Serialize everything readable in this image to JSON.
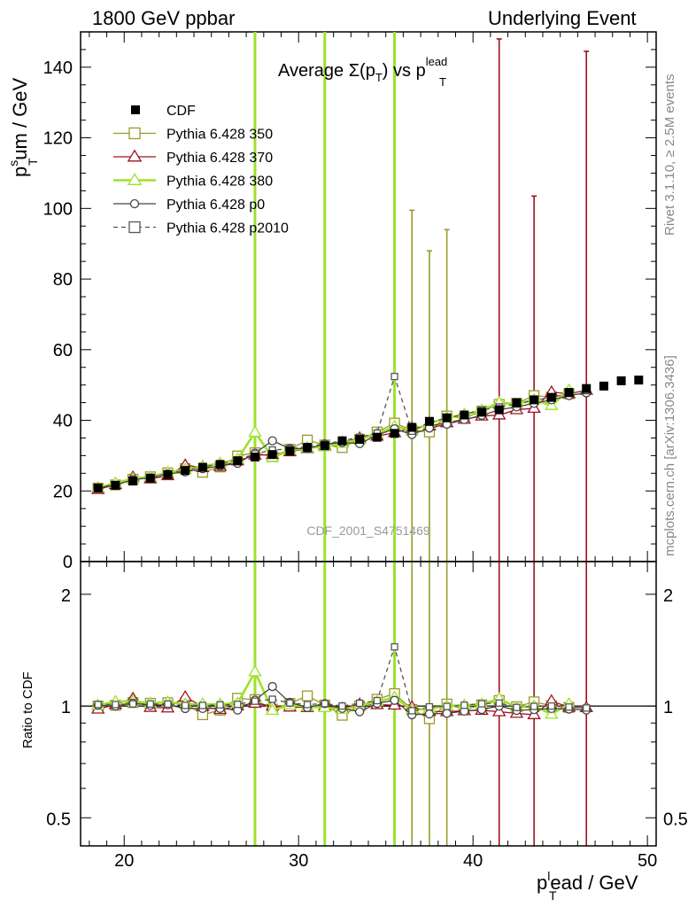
{
  "header": {
    "left": "1800 GeV ppbar",
    "right": "Underlying Event"
  },
  "side_text": {
    "rivet": "Rivet 3.1.10, ≥ 2.5M events",
    "mcplots": "mcplots.cern.ch [arXiv:1306.3436]"
  },
  "chart_data": {
    "type": "scatter",
    "title_main": "Average Σ(p",
    "title_sub": "T",
    "title_mid": ") vs p",
    "title_sup": "lead",
    "title_sub2": "T",
    "watermark": "CDF_2001_S4751469",
    "xlabel": "p",
    "xlabel_sub": "T",
    "xlabel_sup": "l",
    "xlabel_rest": "ead / GeV",
    "ylabel": "p",
    "ylabel_sub": "T",
    "ylabel_sup": "s",
    "ylabel_rest": "um / GeV",
    "ratio_ylabel": "Ratio to CDF",
    "xlim": [
      17.5,
      50.5
    ],
    "ylim": [
      0,
      150
    ],
    "ratio_ylim": [
      0.42,
      2.45
    ],
    "x_ticks": [
      "20",
      "30",
      "40",
      "50"
    ],
    "y_ticks": [
      "0",
      "20",
      "40",
      "60",
      "80",
      "100",
      "120",
      "140"
    ],
    "ratio_ticks": [
      "0.5",
      "1",
      "2"
    ],
    "legend": [
      {
        "name": "CDF",
        "color": "#000000",
        "marker": "square-filled",
        "dash": false
      },
      {
        "name": "Pythia 6.428 350",
        "color": "#9a9a28",
        "marker": "square-open",
        "dash": false
      },
      {
        "name": "Pythia 6.428 370",
        "color": "#a01020",
        "marker": "triangle-open",
        "dash": false
      },
      {
        "name": "Pythia 6.428 380",
        "color": "#9ce22a",
        "marker": "triangle-open",
        "dash": false
      },
      {
        "name": "Pythia 6.428 p0",
        "color": "#444444",
        "marker": "circle-open",
        "dash": false
      },
      {
        "name": "Pythia 6.428 p2010",
        "color": "#555555",
        "marker": "square-open",
        "dash": true
      }
    ],
    "cdf": {
      "x": [
        18.5,
        19.5,
        20.5,
        21.5,
        22.5,
        23.5,
        24.5,
        25.5,
        26.5,
        27.5,
        28.5,
        29.5,
        30.5,
        31.5,
        32.5,
        33.5,
        34.5,
        35.5,
        36.5,
        37.5,
        38.5,
        39.5,
        40.5,
        41.5,
        42.5,
        43.5,
        44.5,
        45.5,
        46.5,
        47.5,
        48.5,
        49.5
      ],
      "y": [
        20.8,
        21.6,
        22.8,
        23.6,
        24.6,
        25.8,
        26.7,
        27.5,
        28.5,
        29.6,
        30.3,
        31.3,
        32.3,
        32.8,
        34.2,
        34.6,
        35.2,
        36.3,
        38.0,
        39.7,
        40.7,
        41.5,
        42.3,
        43.0,
        45.0,
        45.8,
        46.5,
        47.9,
        49.0,
        49.7,
        51.2,
        51.4
      ]
    },
    "series": [
      {
        "name": "Pythia 6.428 350",
        "color": "#9a9a28",
        "dash": false,
        "marker": "square",
        "values": [
          20.8,
          21.7,
          23.3,
          24.0,
          25.1,
          26.3,
          25.3,
          26.8,
          29.9,
          30.8,
          29.7,
          31.8,
          34.4,
          33.0,
          32.3,
          34.6,
          36.7,
          39.2,
          37.2,
          36.7,
          41.2,
          40.6,
          42.6,
          44.5,
          44.8,
          47.0,
          46.6,
          47.5,
          null,
          null,
          null,
          null
        ],
        "big_err": [
          {
            "x": 36.5,
            "lo": 0,
            "hi": 99.5
          },
          {
            "x": 37.5,
            "lo": 0,
            "hi": 88
          },
          {
            "x": 38.5,
            "lo": 0,
            "hi": 94
          }
        ]
      },
      {
        "name": "Pythia 6.428 370",
        "color": "#a01020",
        "dash": false,
        "marker": "triangle",
        "values": [
          20.4,
          21.8,
          23.9,
          23.4,
          24.3,
          27.3,
          26.6,
          26.9,
          28.5,
          30.1,
          30.3,
          31.1,
          32.0,
          32.8,
          33.7,
          35.0,
          35.5,
          36.5,
          37.8,
          38.4,
          39.3,
          40.3,
          41.2,
          41.5,
          43.0,
          43.4,
          48.0,
          47.5,
          48.5,
          null,
          null,
          null
        ],
        "big_err": [
          {
            "x": 41.5,
            "lo": 14,
            "hi": 148
          },
          {
            "x": 43.5,
            "lo": 0,
            "hi": 103.5
          },
          {
            "x": 46.5,
            "lo": 0,
            "hi": 144.5
          }
        ]
      },
      {
        "name": "Pythia 6.428 380",
        "color": "#9ce22a",
        "dash": false,
        "marker": "triangle",
        "values": [
          20.9,
          22.2,
          23.5,
          24.0,
          25.2,
          26.1,
          27.0,
          27.8,
          29.0,
          36.6,
          29.5,
          31.5,
          32.2,
          32.5,
          33.5,
          34.6,
          36.2,
          38.3,
          37.1,
          39.0,
          40.7,
          41.7,
          42.8,
          45.0,
          44.6,
          45.8,
          44.2,
          48.5,
          null,
          null,
          null,
          null
        ],
        "vlines": [
          27.5,
          31.5,
          35.5
        ]
      },
      {
        "name": "Pythia 6.428 p0",
        "color": "#444444",
        "dash": false,
        "marker": "circle",
        "values": [
          20.9,
          21.6,
          23.2,
          23.7,
          24.8,
          25.4,
          26.3,
          27.1,
          27.8,
          30.7,
          34.2,
          32.0,
          32.0,
          33.3,
          33.7,
          33.4,
          35.8,
          37.6,
          36.0,
          37.8,
          38.9,
          40.2,
          41.4,
          43.0,
          43.8,
          44.8,
          45.8,
          47.0,
          47.8,
          null,
          null,
          null
        ]
      },
      {
        "name": "Pythia 6.428 p2010",
        "color": "#555555",
        "dash": true,
        "marker": "square",
        "values": [
          21.0,
          21.8,
          23.1,
          23.9,
          24.9,
          25.9,
          26.8,
          27.7,
          28.8,
          30.5,
          31.6,
          31.9,
          32.6,
          33.3,
          34.2,
          35.2,
          36.4,
          52.4,
          36.9,
          39.5,
          40.6,
          41.7,
          42.9,
          43.8,
          44.6,
          45.7,
          46.5,
          47.6,
          48.4,
          null,
          null,
          null
        ]
      }
    ]
  }
}
